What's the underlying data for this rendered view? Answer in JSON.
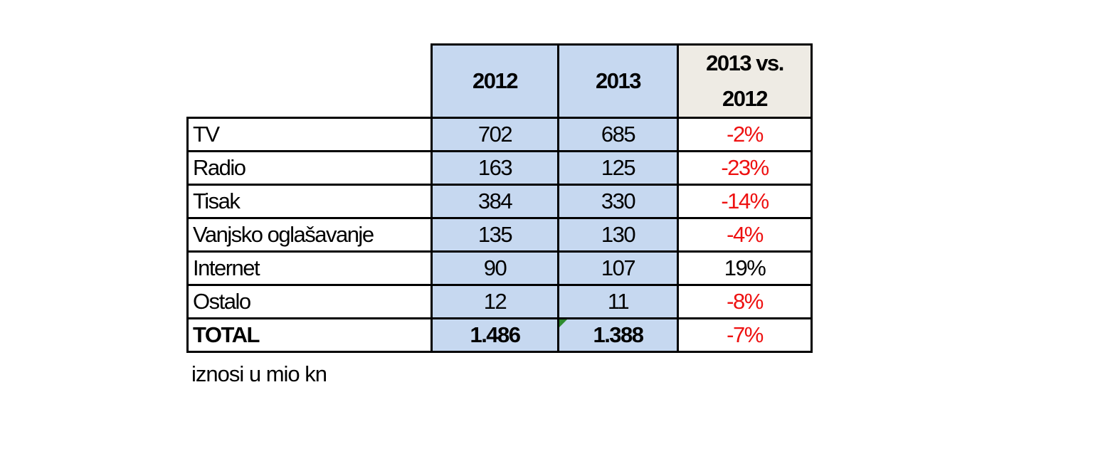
{
  "chart_data": {
    "type": "table",
    "columns": [
      "2012",
      "2013",
      "2013 vs. 2012"
    ],
    "change_header_line1": "2013 vs.",
    "change_header_line2": "2012",
    "rows": [
      {
        "label": "TV",
        "v2012": "702",
        "v2013": "685",
        "change": "-2%",
        "change_color": "#ee1111"
      },
      {
        "label": "Radio",
        "v2012": "163",
        "v2013": "125",
        "change": "-23%",
        "change_color": "#ee1111"
      },
      {
        "label": "Tisak",
        "v2012": "384",
        "v2013": "330",
        "change": "-14%",
        "change_color": "#ee1111"
      },
      {
        "label": "Vanjsko oglašavanje",
        "v2012": "135",
        "v2013": "130",
        "change": "-4%",
        "change_color": "#ee1111"
      },
      {
        "label": "Internet",
        "v2012": "90",
        "v2013": "107",
        "change": "19%",
        "change_color": "#000000"
      },
      {
        "label": "Ostalo",
        "v2012": "12",
        "v2013": "11",
        "change": "-8%",
        "change_color": "#ee1111"
      }
    ],
    "total": {
      "label": "TOTAL",
      "v2012": "1.486",
      "v2013": "1.388",
      "change": "-7%",
      "change_color": "#ee1111"
    },
    "note": "iznosi u mio kn",
    "year_column_fill": "#c6d8f0",
    "change_header_fill": "#eeebe4"
  }
}
